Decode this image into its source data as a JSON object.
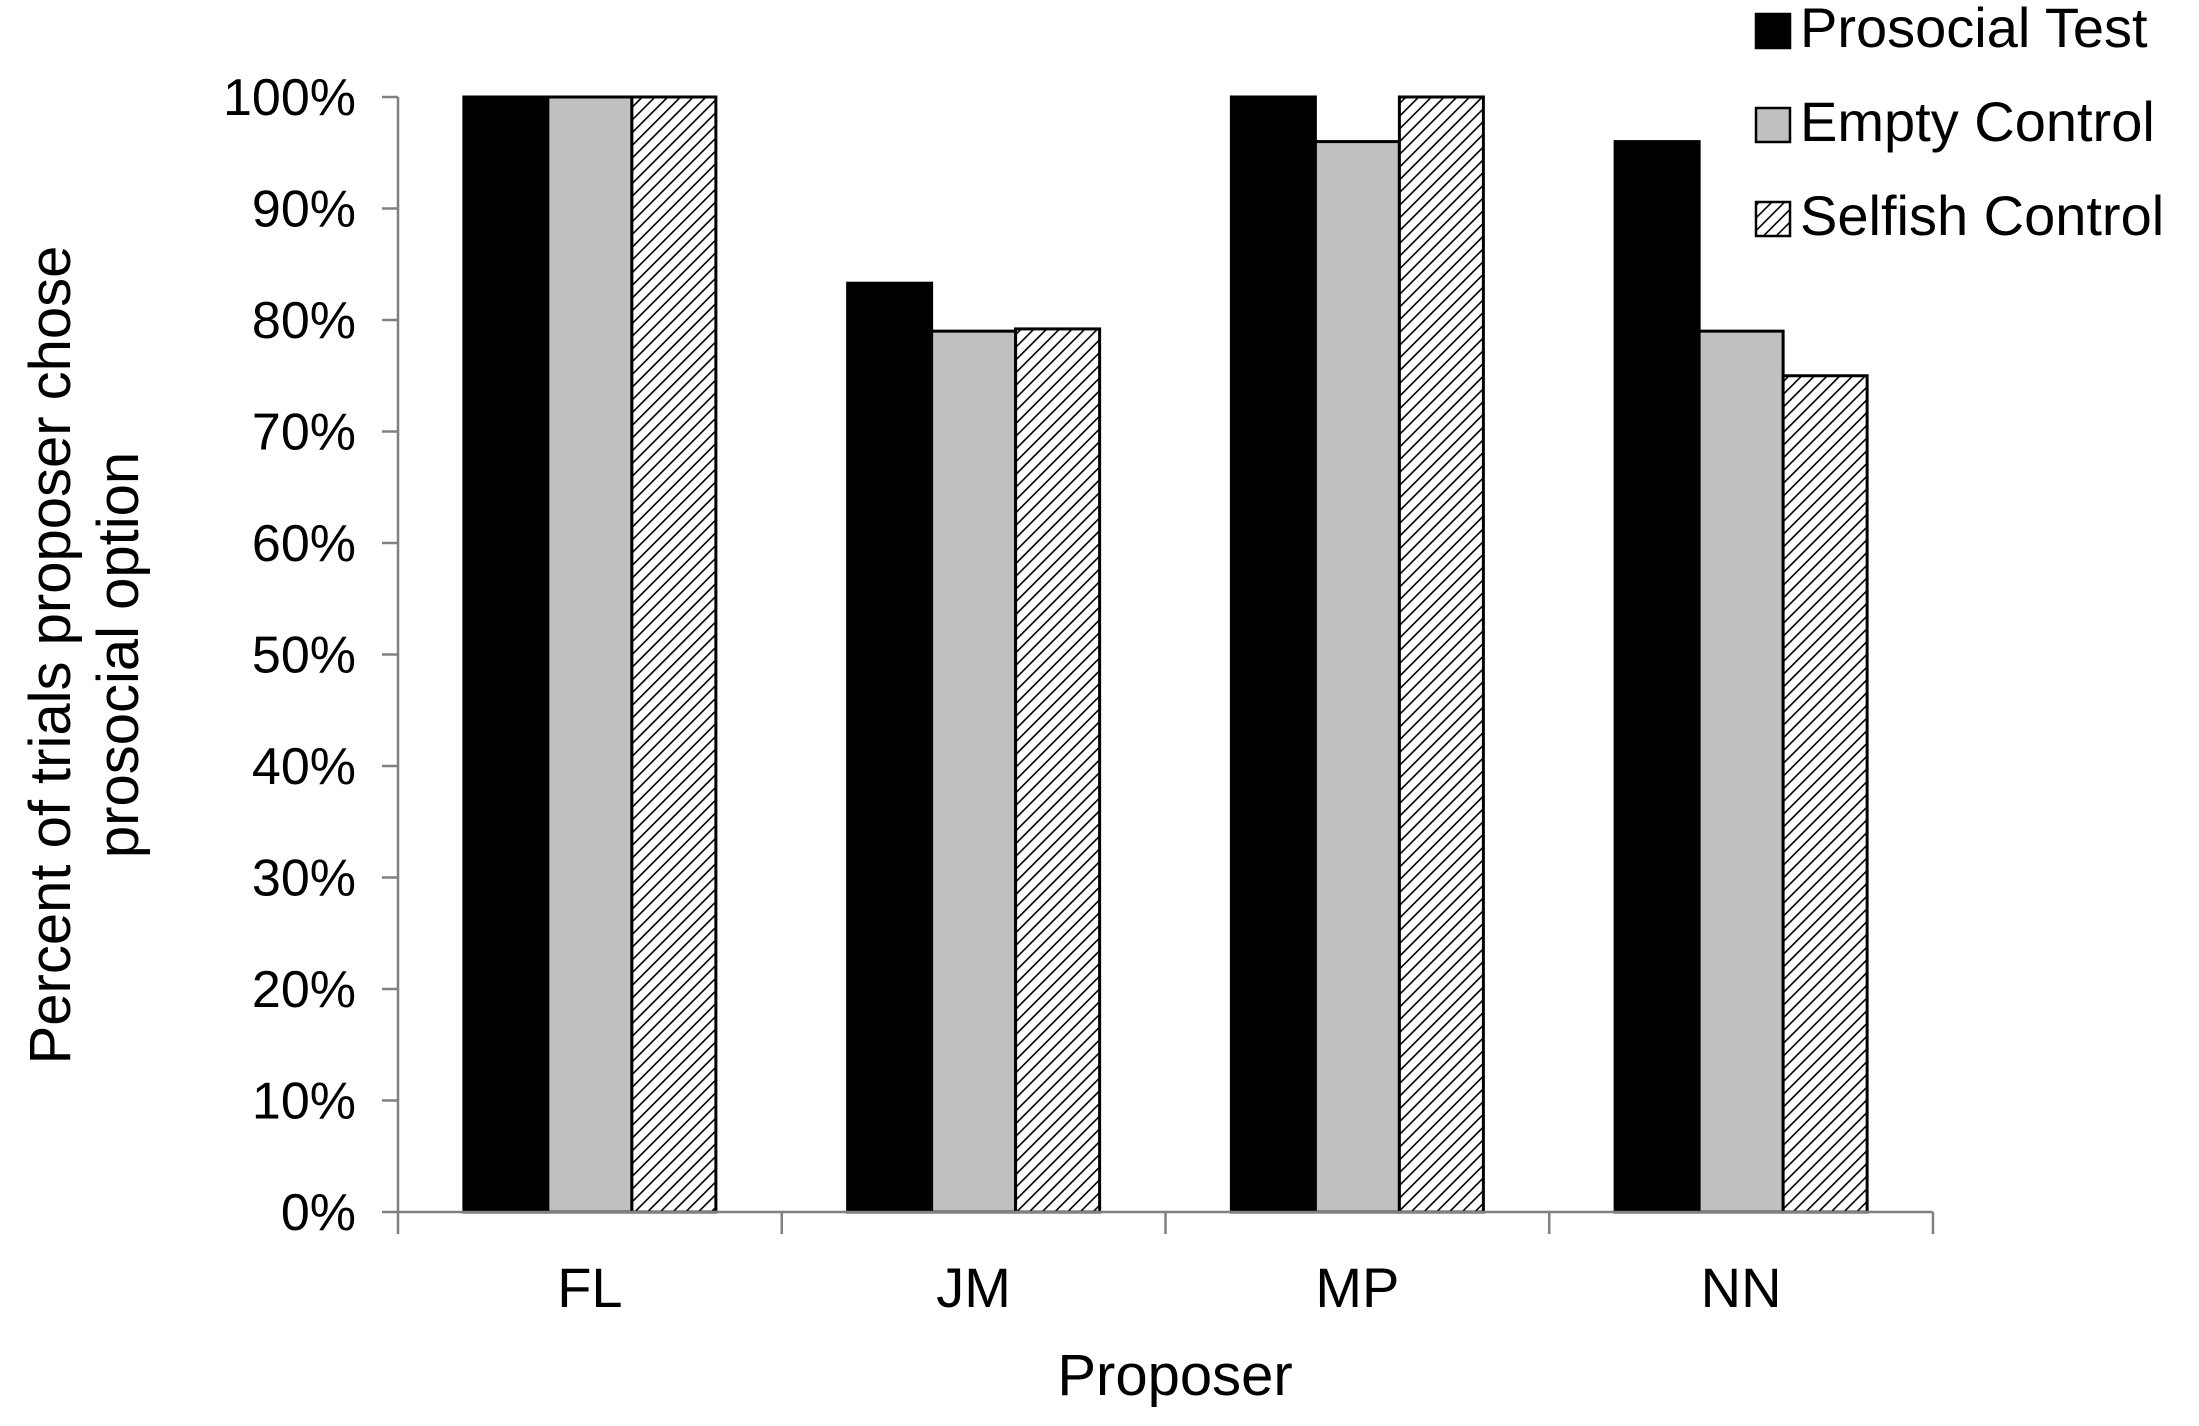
{
  "chart_data": {
    "type": "bar",
    "title": "",
    "xlabel": "Proposer",
    "ylabel_lines": [
      "Percent of trials proposer chose",
      "prosocial option"
    ],
    "categories": [
      "FL",
      "JM",
      "MP",
      "NN"
    ],
    "series": [
      {
        "name": "Prosocial Test",
        "values": [
          100,
          83.3,
          100,
          96
        ],
        "fill": "#000000",
        "pattern": "solid"
      },
      {
        "name": "Empty Control",
        "values": [
          100,
          79,
          96,
          79
        ],
        "fill": "#c0c0c0",
        "pattern": "solid"
      },
      {
        "name": "Selfish Control",
        "values": [
          100,
          79.2,
          100,
          75
        ],
        "fill": "#ffffff",
        "pattern": "diagonal-hatch"
      }
    ],
    "ylim": [
      0,
      100
    ],
    "yticks": [
      0,
      10,
      20,
      30,
      40,
      50,
      60,
      70,
      80,
      90,
      100
    ],
    "ytick_labels": [
      "0%",
      "10%",
      "20%",
      "30%",
      "40%",
      "50%",
      "60%",
      "70%",
      "80%",
      "90%",
      "100%"
    ],
    "grid": false,
    "legend_position": "top-right"
  }
}
